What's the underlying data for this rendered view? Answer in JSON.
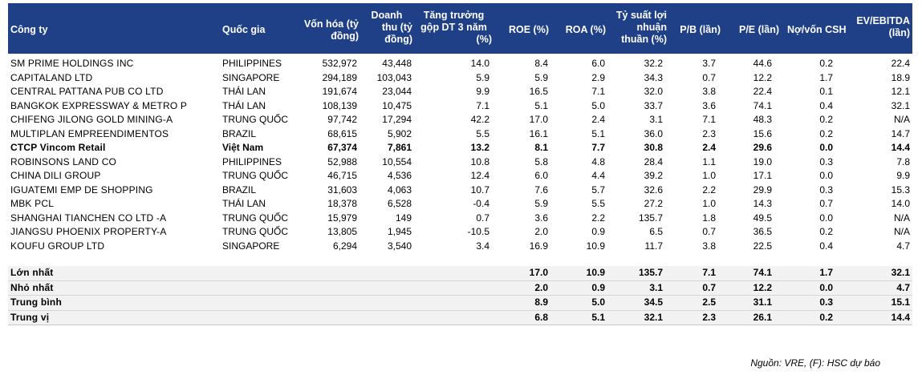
{
  "headers": {
    "company": "Công ty",
    "country": "Quốc gia",
    "market_cap": [
      "Vốn hóa (tỷ",
      "đồng)"
    ],
    "revenue": [
      "Doanh",
      "thu (tỷ",
      "đồng)"
    ],
    "growth": [
      "Tăng trưởng",
      "gộp DT 3 năm",
      "(%)"
    ],
    "roe": "ROE (%)",
    "roa": "ROA (%)",
    "net_margin": [
      "Tỷ suất lợi",
      "nhuận",
      "thuần (%)"
    ],
    "pb": "P/B (lần)",
    "pe": "P/E (lần)",
    "debt_equity": "Nợ/vốn CSH",
    "ev_ebitda": [
      "EV/EBITDA",
      "(lần)"
    ]
  },
  "rows": [
    {
      "company": "SM PRIME HOLDINGS INC",
      "country": "PHILIPPINES",
      "market_cap": "532,972",
      "revenue": "43,448",
      "growth": "14.0",
      "roe": "8.4",
      "roa": "6.0",
      "net_margin": "32.2",
      "pb": "3.7",
      "pe": "44.6",
      "debt_equity": "0.2",
      "ev_ebitda": "22.4"
    },
    {
      "company": "CAPITALAND LTD",
      "country": "SINGAPORE",
      "market_cap": "294,189",
      "revenue": "103,043",
      "growth": "5.9",
      "roe": "5.9",
      "roa": "2.9",
      "net_margin": "34.3",
      "pb": "0.7",
      "pe": "12.2",
      "debt_equity": "1.7",
      "ev_ebitda": "18.9"
    },
    {
      "company": "CENTRAL PATTANA PUB CO LTD",
      "country": "THÁI LAN",
      "market_cap": "191,674",
      "revenue": "23,044",
      "growth": "9.9",
      "roe": "16.5",
      "roa": "7.1",
      "net_margin": "32.0",
      "pb": "3.8",
      "pe": "22.4",
      "debt_equity": "0.1",
      "ev_ebitda": "12.1"
    },
    {
      "company": "BANGKOK EXPRESSWAY & METRO P",
      "country": "THÁI LAN",
      "market_cap": "108,139",
      "revenue": "10,475",
      "growth": "7.1",
      "roe": "5.1",
      "roa": "5.0",
      "net_margin": "33.7",
      "pb": "3.6",
      "pe": "74.1",
      "debt_equity": "0.4",
      "ev_ebitda": "32.1"
    },
    {
      "company": "CHIFENG JILONG GOLD MINING-A",
      "country": "TRUNG QUỐC",
      "market_cap": "97,742",
      "revenue": "17,294",
      "growth": "42.2",
      "roe": "17.0",
      "roa": "2.4",
      "net_margin": "3.1",
      "pb": "7.1",
      "pe": "48.3",
      "debt_equity": "0.2",
      "ev_ebitda": "N/A"
    },
    {
      "company": "MULTIPLAN EMPREENDIMENTOS",
      "country": "BRAZIL",
      "market_cap": "68,615",
      "revenue": "5,902",
      "growth": "5.5",
      "roe": "16.1",
      "roa": "5.1",
      "net_margin": "36.0",
      "pb": "2.3",
      "pe": "15.6",
      "debt_equity": "0.2",
      "ev_ebitda": "14.7"
    },
    {
      "company": "CTCP Vincom Retail",
      "country": "Việt Nam",
      "market_cap": "67,374",
      "revenue": "7,861",
      "growth": "13.2",
      "roe": "8.1",
      "roa": "7.7",
      "net_margin": "30.8",
      "pb": "2.4",
      "pe": "29.6",
      "debt_equity": "0.0",
      "ev_ebitda": "14.4",
      "bold": true
    },
    {
      "company": "ROBINSONS LAND CO",
      "country": "PHILIPPINES",
      "market_cap": "52,988",
      "revenue": "10,554",
      "growth": "10.8",
      "roe": "5.8",
      "roa": "4.8",
      "net_margin": "28.4",
      "pb": "1.1",
      "pe": "19.0",
      "debt_equity": "0.3",
      "ev_ebitda": "7.8"
    },
    {
      "company": "CHINA DILI GROUP",
      "country": "TRUNG QUỐC",
      "market_cap": "46,715",
      "revenue": "4,536",
      "growth": "12.4",
      "roe": "6.0",
      "roa": "4.4",
      "net_margin": "39.2",
      "pb": "1.0",
      "pe": "17.1",
      "debt_equity": "0.0",
      "ev_ebitda": "9.9"
    },
    {
      "company": "IGUATEMI EMP DE SHOPPING",
      "country": "BRAZIL",
      "market_cap": "31,603",
      "revenue": "4,063",
      "growth": "10.7",
      "roe": "7.6",
      "roa": "5.7",
      "net_margin": "32.6",
      "pb": "2.2",
      "pe": "29.9",
      "debt_equity": "0.3",
      "ev_ebitda": "15.3"
    },
    {
      "company": "MBK PCL",
      "country": "THÁI LAN",
      "market_cap": "18,378",
      "revenue": "6,528",
      "growth": "-0.4",
      "roe": "5.9",
      "roa": "5.5",
      "net_margin": "27.2",
      "pb": "1.0",
      "pe": "14.3",
      "debt_equity": "0.7",
      "ev_ebitda": "14.0"
    },
    {
      "company": "SHANGHAI TIANCHEN CO LTD -A",
      "country": "TRUNG QUỐC",
      "market_cap": "15,979",
      "revenue": "149",
      "growth": "0.7",
      "roe": "3.6",
      "roa": "2.2",
      "net_margin": "135.7",
      "pb": "1.8",
      "pe": "49.5",
      "debt_equity": "0.0",
      "ev_ebitda": "N/A"
    },
    {
      "company": "JIANGSU PHOENIX PROPERTY-A",
      "country": "TRUNG QUỐC",
      "market_cap": "13,805",
      "revenue": "1,945",
      "growth": "-10.5",
      "roe": "2.0",
      "roa": "0.9",
      "net_margin": "6.5",
      "pb": "0.7",
      "pe": "36.5",
      "debt_equity": "0.2",
      "ev_ebitda": "N/A"
    },
    {
      "company": "KOUFU GROUP LTD",
      "country": "SINGAPORE",
      "market_cap": "6,294",
      "revenue": "3,540",
      "growth": "3.4",
      "roe": "16.9",
      "roa": "10.9",
      "net_margin": "11.7",
      "pb": "3.8",
      "pe": "22.5",
      "debt_equity": "0.4",
      "ev_ebitda": "4.7"
    }
  ],
  "summary": [
    {
      "label": "Lớn nhất",
      "roe": "17.0",
      "roa": "10.9",
      "net_margin": "135.7",
      "pb": "7.1",
      "pe": "74.1",
      "debt_equity": "1.7",
      "ev_ebitda": "32.1"
    },
    {
      "label": "Nhỏ nhất",
      "roe": "2.0",
      "roa": "0.9",
      "net_margin": "3.1",
      "pb": "0.7",
      "pe": "12.2",
      "debt_equity": "0.0",
      "ev_ebitda": "4.7"
    },
    {
      "label": "Trung bình",
      "roe": "8.9",
      "roa": "5.0",
      "net_margin": "34.5",
      "pb": "2.5",
      "pe": "31.1",
      "debt_equity": "0.3",
      "ev_ebitda": "15.1"
    },
    {
      "label": "Trung vị",
      "roe": "6.8",
      "roa": "5.1",
      "net_margin": "32.1",
      "pb": "2.3",
      "pe": "26.1",
      "debt_equity": "0.2",
      "ev_ebitda": "14.4"
    }
  ],
  "source": "Nguồn: VRE, (F): HSC dự báo"
}
